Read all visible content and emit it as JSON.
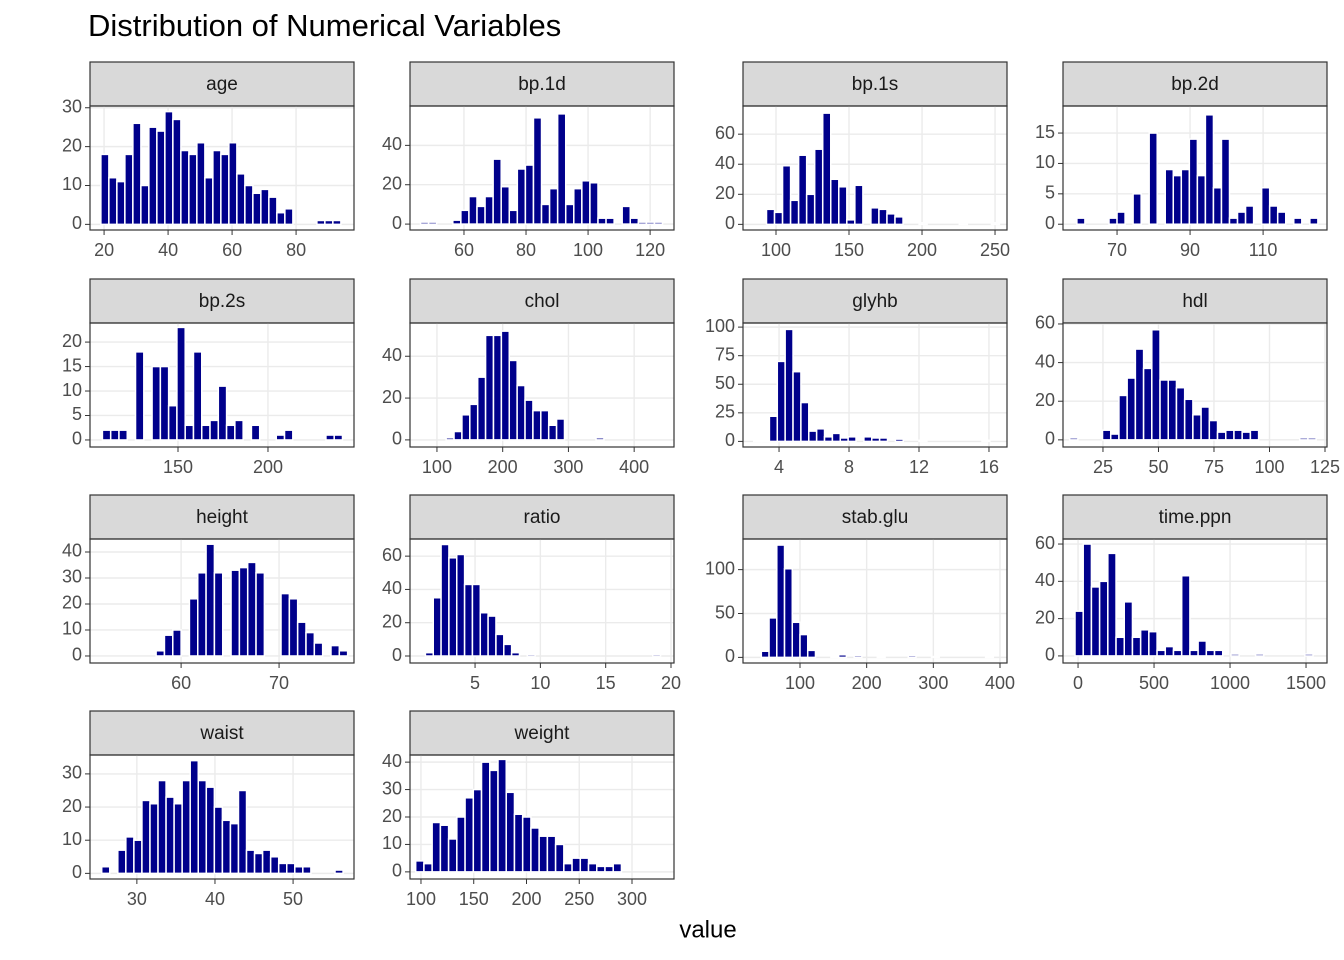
{
  "chart_data": {
    "type": "histogram",
    "title": "Distribution of Numerical Variables",
    "xlabel": "value",
    "color": "#00008b",
    "grid": true,
    "facets": [
      {
        "title": "age",
        "bins": [
          19,
          21.5,
          24,
          26.5,
          29,
          31.5,
          34,
          36.5,
          39,
          41.5,
          44,
          46.5,
          49,
          51.5,
          54,
          56.5,
          59,
          61.5,
          64,
          66.5,
          69,
          71.5,
          74,
          76.5,
          79,
          81.5,
          84,
          86.5,
          89,
          91.5,
          94
        ],
        "values": [
          18,
          12,
          11,
          18,
          26,
          10,
          25,
          24,
          29,
          27,
          19,
          18,
          21,
          12,
          19,
          18,
          21,
          13,
          10,
          8,
          9,
          7,
          3,
          4,
          0,
          0,
          0,
          1,
          1,
          1
        ],
        "xlim": [
          15.6,
          98.1
        ],
        "ylim": [
          -1.45,
          30.45
        ],
        "xticks": [
          20,
          40,
          60,
          80
        ],
        "yticks": [
          0,
          10,
          20,
          30
        ]
      },
      {
        "title": "bp.1d",
        "bins": [
          46,
          48.6,
          51.2,
          53.8,
          56.4,
          59,
          61.6,
          64.2,
          66.8,
          69.4,
          72,
          74.6,
          77.2,
          79.8,
          82.4,
          85,
          87.6,
          90.2,
          92.8,
          95.4,
          98,
          100.6,
          103.2,
          105.8,
          108.4,
          111,
          113.6,
          116.2,
          118.8,
          121.4,
          124
        ],
        "values": [
          1,
          1,
          0,
          0,
          2,
          7,
          14,
          9,
          14,
          33,
          19,
          7,
          28,
          30,
          54,
          10,
          18,
          56,
          10,
          18,
          22,
          21,
          3,
          3,
          0,
          9,
          3,
          1,
          1,
          1
        ],
        "xlim": [
          42.6,
          127.7
        ],
        "ylim": [
          -3,
          60
        ],
        "xticks": [
          60,
          80,
          100,
          120
        ],
        "yticks": [
          0,
          20,
          40
        ]
      },
      {
        "title": "bp.1s",
        "bins": [
          88,
          93.5,
          99,
          104.5,
          110,
          115.5,
          121,
          126.5,
          132,
          137.5,
          143,
          148.5,
          154,
          159.5,
          165,
          170.5,
          176,
          181.5,
          187,
          192.5,
          198,
          203.5,
          209,
          214.5,
          220,
          225.5,
          231,
          236.5,
          242,
          247.5,
          253
        ],
        "values": [
          0,
          10,
          8,
          39,
          16,
          46,
          20,
          50,
          74,
          30,
          25,
          3,
          26,
          0,
          11,
          10,
          7,
          5,
          0,
          0,
          1,
          0,
          0,
          0,
          0,
          1,
          0,
          0,
          0,
          1
        ],
        "xlim": [
          77.4,
          258.2
        ],
        "ylim": [
          -3.75,
          78.75
        ],
        "xticks": [
          100,
          150,
          200,
          250
        ],
        "yticks": [
          0,
          20,
          40,
          60
        ]
      },
      {
        "title": "bp.2d",
        "bins": [
          59,
          61.2,
          63.4,
          65.6,
          67.8,
          70,
          72.2,
          74.4,
          76.6,
          78.8,
          81,
          83.2,
          85.4,
          87.6,
          89.8,
          92,
          94.2,
          96.4,
          98.6,
          100.8,
          103,
          105.2,
          107.4,
          109.6,
          111.8,
          114,
          116.2,
          118.4,
          120.6,
          122.8,
          125
        ],
        "values": [
          1,
          0,
          0,
          0,
          1,
          2,
          0,
          5,
          0,
          15,
          0,
          9,
          8,
          9,
          14,
          8,
          18,
          6,
          14,
          1,
          2,
          3,
          0,
          6,
          3,
          2,
          0,
          1,
          0,
          1
        ],
        "xlim": [
          55.2,
          127.5
        ],
        "ylim": [
          -0.95,
          19.45
        ],
        "xticks": [
          70,
          90,
          110
        ],
        "yticks": [
          0,
          5,
          10,
          15
        ]
      },
      {
        "title": "bp.2s",
        "bins": [
          108,
          112.6,
          117.2,
          121.8,
          126.4,
          131,
          135.6,
          140.2,
          144.8,
          149.4,
          154,
          158.6,
          163.2,
          167.8,
          172.4,
          177,
          181.6,
          186.2,
          190.8,
          195.4,
          200,
          204.6,
          209.2,
          213.8,
          218.4,
          223,
          227.6,
          232.2,
          236.8,
          241.4,
          246
        ],
        "values": [
          2,
          2,
          2,
          0,
          18,
          0,
          15,
          15,
          7,
          23,
          3,
          18,
          3,
          4,
          11,
          3,
          4,
          0,
          3,
          0,
          0,
          1,
          2,
          0,
          0,
          0,
          0,
          1,
          1,
          0
        ],
        "xlim": [
          101.1,
          247.8
        ],
        "ylim": [
          -1.44,
          23.9
        ],
        "xticks": [
          150,
          200
        ],
        "yticks": [
          0,
          5,
          10,
          15,
          20
        ]
      },
      {
        "title": "chol",
        "bins": [
          78,
          90,
          102,
          114,
          126,
          138,
          150,
          162,
          174,
          186,
          198,
          210,
          222,
          234,
          246,
          258,
          270,
          282,
          294,
          306,
          318,
          330,
          342,
          354,
          366,
          378,
          390,
          402,
          414,
          426,
          438
        ],
        "values": [
          0,
          0,
          0,
          1,
          4,
          12,
          17,
          30,
          50,
          50,
          52,
          38,
          26,
          19,
          14,
          14,
          7,
          10,
          0,
          0,
          0,
          0,
          1,
          0,
          0,
          0,
          0,
          0,
          0,
          0
        ],
        "xlim": [
          59,
          460.6
        ],
        "ylim": [
          -3.4,
          55.9
        ],
        "xticks": [
          100,
          200,
          300,
          400
        ],
        "yticks": [
          0,
          20,
          40
        ]
      },
      {
        "title": "glyhb",
        "bins": [
          2.55,
          3,
          3.45,
          3.9,
          4.35,
          4.8,
          5.25,
          5.7,
          6.15,
          6.6,
          7.05,
          7.5,
          7.95,
          8.4,
          8.85,
          9.3,
          9.75,
          10.2,
          10.65,
          11.1,
          11.55,
          12,
          12.45,
          12.9,
          13.35,
          13.8,
          14.25,
          14.7,
          15.15,
          15.6,
          16.05
        ],
        "values": [
          1,
          1,
          22,
          70,
          98,
          61,
          34,
          9,
          11,
          4,
          7,
          3,
          4,
          0,
          4,
          3,
          3,
          0,
          2,
          0,
          0,
          1,
          0,
          0,
          0,
          0,
          0,
          0,
          0,
          1
        ],
        "xlim": [
          1.94,
          17.03
        ],
        "ylim": [
          -4.9,
          103.6
        ],
        "xticks": [
          4,
          8,
          12,
          16
        ],
        "yticks": [
          0,
          25,
          50,
          75,
          100
        ]
      },
      {
        "title": "hdl",
        "bins": [
          10,
          13.7,
          17.4,
          21.1,
          24.8,
          28.5,
          32.2,
          35.9,
          39.6,
          43.3,
          47,
          50.7,
          54.4,
          58.1,
          61.8,
          65.5,
          69.2,
          72.9,
          76.6,
          80.3,
          84,
          87.7,
          91.4,
          95.1,
          98.8,
          102.5,
          106.2,
          109.9,
          113.6,
          117.3,
          121
        ],
        "values": [
          1,
          0,
          0,
          0,
          5,
          3,
          23,
          32,
          47,
          37,
          57,
          31,
          31,
          27,
          21,
          13,
          17,
          10,
          4,
          5,
          5,
          4,
          5,
          0,
          0,
          0,
          0,
          0,
          1,
          1
        ],
        "xlim": [
          7,
          125.9
        ],
        "ylim": [
          -3.7,
          60.5
        ],
        "xticks": [
          25,
          50,
          75,
          100,
          125
        ],
        "yticks": [
          0,
          20,
          40,
          60
        ]
      },
      {
        "title": "height",
        "bins": [
          51.5,
          52.35,
          53.2,
          54.05,
          54.9,
          55.75,
          56.6,
          57.45,
          58.3,
          59.15,
          60,
          60.85,
          61.7,
          62.55,
          63.4,
          64.25,
          65.1,
          65.95,
          66.8,
          67.65,
          68.5,
          69.35,
          70.2,
          71.05,
          71.9,
          72.75,
          73.6,
          74.45,
          75.3,
          76.15,
          77
        ],
        "values": [
          0,
          0,
          0,
          0,
          0,
          0,
          0,
          2,
          8,
          10,
          0,
          22,
          32,
          43,
          32,
          0,
          33,
          34,
          36,
          32,
          0,
          0,
          24,
          22,
          13,
          9,
          5,
          0,
          4,
          2
        ],
        "xlim": [
          50.7,
          77.65
        ],
        "ylim": [
          -2.7,
          45
        ],
        "xticks": [
          60,
          70
        ],
        "yticks": [
          0,
          10,
          20,
          30,
          40
        ]
      },
      {
        "title": "ratio",
        "bins": [
          1.2,
          1.8,
          2.4,
          3,
          3.6,
          4.2,
          4.8,
          5.4,
          6,
          6.6,
          7.2,
          7.8,
          8.4,
          9,
          9.6,
          10.2,
          10.8,
          11.4,
          12,
          12.6,
          13.2,
          13.8,
          14.4,
          15,
          15.6,
          16.2,
          16.8,
          17.4,
          18,
          18.6,
          19.2
        ],
        "values": [
          2,
          35,
          67,
          59,
          61,
          43,
          43,
          26,
          24,
          13,
          7,
          2,
          0,
          1,
          0,
          0,
          0,
          0,
          0,
          0,
          0,
          0,
          0,
          0,
          0,
          0,
          0,
          0,
          0,
          1
        ],
        "xlim": [
          0.02,
          20.23
        ],
        "ylim": [
          -4.2,
          70.3
        ],
        "xticks": [
          5,
          10,
          15,
          20
        ],
        "yticks": [
          0,
          20,
          40,
          60
        ]
      },
      {
        "title": "stab.glu",
        "bins": [
          42,
          53.6,
          65.2,
          76.8,
          88.4,
          100,
          111.6,
          123.2,
          134.8,
          146.4,
          158,
          169.6,
          181.2,
          192.8,
          204.4,
          216,
          227.6,
          239.2,
          250.8,
          262.4,
          274,
          285.6,
          297.2,
          308.8,
          320.4,
          332,
          343.6,
          355.2,
          366.8,
          378.4,
          390
        ],
        "values": [
          7,
          45,
          128,
          101,
          40,
          26,
          8,
          0,
          0,
          1,
          3,
          0,
          2,
          0,
          0,
          1,
          0,
          0,
          0,
          2,
          0,
          0,
          1,
          0,
          0,
          0,
          0,
          0,
          0,
          1
        ],
        "xlim": [
          14.5,
          410.5
        ],
        "ylim": [
          -6.4,
          134.9
        ],
        "xticks": [
          100,
          200,
          300,
          400
        ],
        "yticks": [
          0,
          50,
          100
        ]
      },
      {
        "title": "time.ppn",
        "bins": [
          -20,
          34,
          88,
          142,
          196,
          250,
          304,
          358,
          412,
          466,
          520,
          574,
          628,
          682,
          736,
          790,
          844,
          898,
          952,
          1006,
          1060,
          1114,
          1168,
          1222,
          1276,
          1330,
          1384,
          1438,
          1492,
          1546,
          1600
        ],
        "values": [
          24,
          60,
          37,
          40,
          55,
          10,
          29,
          10,
          14,
          13,
          3,
          5,
          3,
          43,
          3,
          8,
          3,
          3,
          0,
          1,
          0,
          0,
          1,
          0,
          0,
          0,
          0,
          0,
          1,
          0
        ],
        "xlim": [
          -99,
          1638
        ],
        "ylim": [
          -3.8,
          62.7
        ],
        "xticks": [
          0,
          500,
          1000,
          1500
        ],
        "yticks": [
          0,
          20,
          40,
          60
        ]
      },
      {
        "title": "waist",
        "bins": [
          25.5,
          26.53,
          27.56,
          28.59,
          29.62,
          30.65,
          31.68,
          32.71,
          33.74,
          34.77,
          35.8,
          36.83,
          37.86,
          38.89,
          39.92,
          40.95,
          41.98,
          43.01,
          44.04,
          45.07,
          46.1,
          47.13,
          48.16,
          49.19,
          50.22,
          51.25,
          52.28,
          53.31,
          54.34,
          55.37,
          56.4
        ],
        "values": [
          2,
          0,
          7,
          11,
          10,
          22,
          21,
          28,
          23,
          21,
          28,
          34,
          28,
          26,
          20,
          16,
          15,
          25,
          7,
          6,
          7,
          5,
          3,
          3,
          2,
          2,
          0,
          0,
          0,
          1
        ],
        "xlim": [
          24,
          57.8
        ],
        "ylim": [
          -1.7,
          35.7
        ],
        "xticks": [
          30,
          40,
          50
        ],
        "yticks": [
          0,
          10,
          20,
          30
        ]
      },
      {
        "title": "weight",
        "bins": [
          95,
          102.8,
          110.6,
          118.4,
          126.2,
          134,
          141.8,
          149.6,
          157.4,
          165.2,
          173,
          180.8,
          188.6,
          196.4,
          204.2,
          212,
          219.8,
          227.6,
          235.4,
          243.2,
          251,
          258.8,
          266.6,
          274.4,
          282.2,
          290,
          297.8,
          305.6,
          313.4,
          321.2,
          329
        ],
        "values": [
          4,
          3,
          18,
          17,
          12,
          20,
          27,
          30,
          40,
          37,
          41,
          29,
          21,
          20,
          16,
          13,
          13,
          10,
          3,
          5,
          5,
          3,
          2,
          2,
          3,
          0,
          0,
          0,
          0,
          0
        ],
        "xlim": [
          89.6,
          339.8
        ],
        "ylim": [
          -2.6,
          42.6
        ],
        "xticks": [
          100,
          150,
          200,
          250,
          300
        ],
        "yticks": [
          0,
          10,
          20,
          30,
          40
        ]
      }
    ]
  }
}
